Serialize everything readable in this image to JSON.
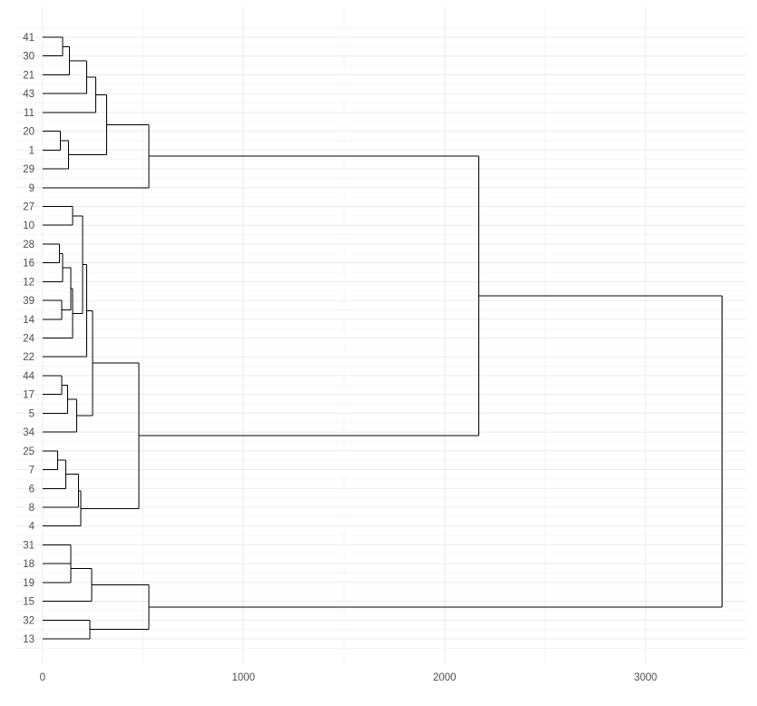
{
  "chart_data": {
    "type": "dendrogram",
    "orientation": "horizontal",
    "title": "",
    "xlabel": "",
    "ylabel": "",
    "xlim": [
      -130,
      3500
    ],
    "x_ticks": [
      0,
      1000,
      2000,
      3000
    ],
    "x_tick_labels": [
      "0",
      "1000",
      "2000",
      "3000"
    ],
    "grid": true,
    "line_color": "#000000",
    "leaves": [
      "41",
      "30",
      "21",
      "43",
      "11",
      "20",
      "1",
      "29",
      "9",
      "27",
      "10",
      "28",
      "16",
      "12",
      "39",
      "14",
      "24",
      "22",
      "44",
      "17",
      "5",
      "34",
      "25",
      "7",
      "6",
      "8",
      "4",
      "31",
      "18",
      "19",
      "15",
      "32",
      "13"
    ],
    "merges": [
      {
        "a": "41",
        "b": "30",
        "height": 100
      },
      {
        "a": "20",
        "b": "1",
        "height": 90
      },
      {
        "a": "28",
        "b": "16",
        "height": 85
      },
      {
        "a": "39",
        "b": "14",
        "height": 95
      },
      {
        "a": "44",
        "b": "17",
        "height": 95
      },
      {
        "a": "25",
        "b": "7",
        "height": 75
      },
      {
        "a": "31",
        "b": "18",
        "height": 140
      },
      {
        "a": "27",
        "b": "10",
        "height": 150
      },
      {
        "a": "32",
        "b": "13",
        "height": 235
      },
      {
        "a": "41,30",
        "b": "21",
        "height": 135
      },
      {
        "a": "20,1",
        "b": "29",
        "height": 130
      },
      {
        "a": "28,16",
        "b": "12",
        "height": 100
      },
      {
        "a": "44,17",
        "b": "5",
        "height": 125
      },
      {
        "a": "25,7",
        "b": "6",
        "height": 115
      },
      {
        "a": "31,18",
        "b": "19",
        "height": 142
      },
      {
        "a": "28,16,12",
        "b": "39,14",
        "height": 140
      },
      {
        "a": "41,30,21",
        "b": "43",
        "height": 220
      },
      {
        "a": "28,16,12,39,14",
        "b": "24",
        "height": 150
      },
      {
        "a": "44,17,5",
        "b": "34",
        "height": 170
      },
      {
        "a": "25,7,6",
        "b": "8",
        "height": 180
      },
      {
        "a": "27,10",
        "b": "28,16,12,39,14,24",
        "height": 200
      },
      {
        "a": "25,7,6,8",
        "b": "4",
        "height": 190
      },
      {
        "a": "27,10,28,16,12,39,14,24",
        "b": "22",
        "height": 220
      },
      {
        "a": "31,18,19",
        "b": "15",
        "height": 245
      },
      {
        "a": "41,30,21,43",
        "b": "11",
        "height": 265
      },
      {
        "a": "27,10,28,16,12,39,14,24,22",
        "b": "44,17,5,34",
        "height": 250
      },
      {
        "a": "41,30,21,43,11",
        "b": "20,1,29",
        "height": 320
      },
      {
        "a": "27,10,28,16,12,39,14,24,22,44,17,5,34",
        "b": "25,7,6,8,4",
        "height": 480
      },
      {
        "a": "41,30,21,43,11,20,1,29",
        "b": "9",
        "height": 530
      },
      {
        "a": "31,18,19,15",
        "b": "32,13",
        "height": 530
      },
      {
        "a": "41,30,21,43,11,20,1,29,9",
        "b": "27,10,28,16,12,39,14,24,22,44,17,5,34,25,7,6,8,4",
        "height": 2170
      },
      {
        "a": "41,30,21,43,11,20,1,29,9,27,10,28,16,12,39,14,24,22,44,17,5,34,25,7,6,8,4",
        "b": "31,18,19,15,32,13",
        "height": 3380
      }
    ]
  }
}
